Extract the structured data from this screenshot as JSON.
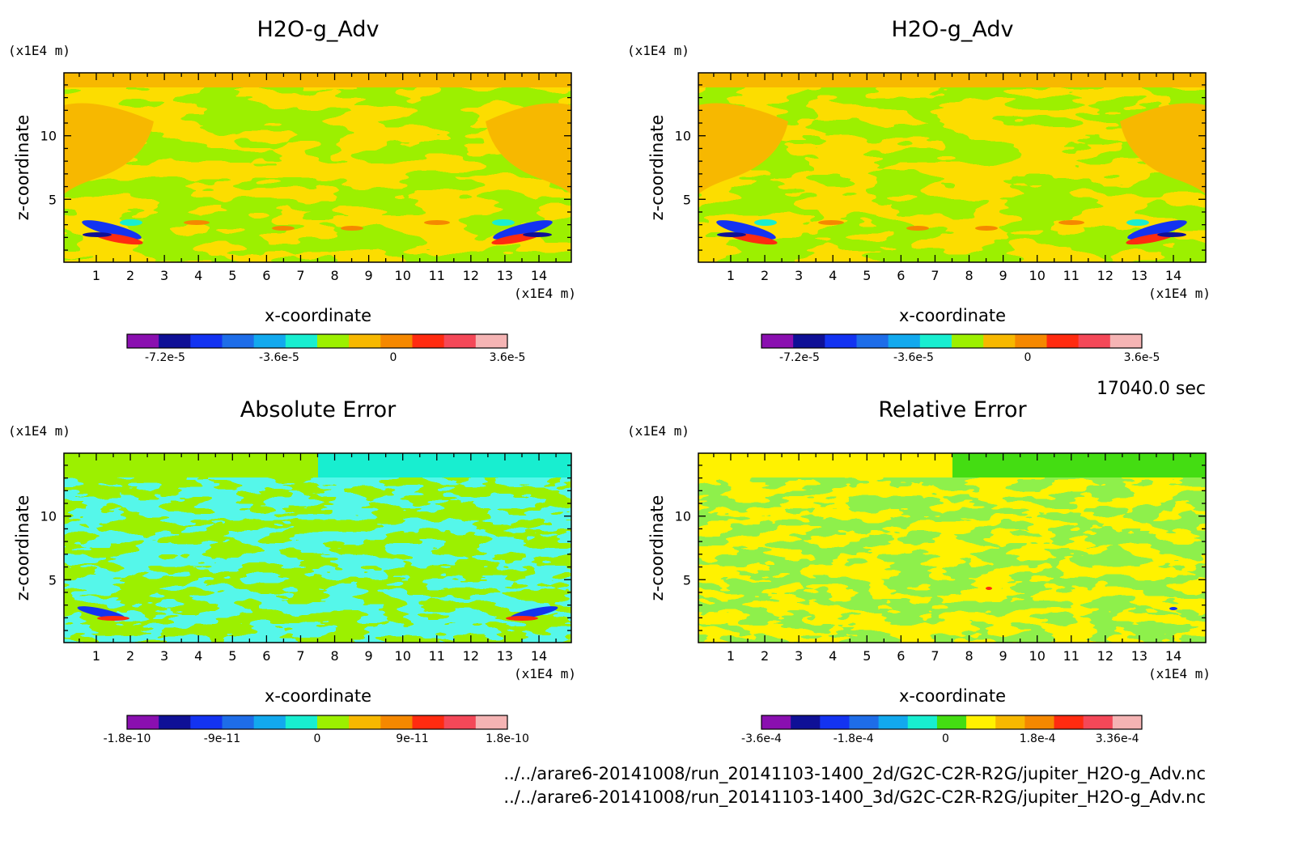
{
  "time_label": "17040.0 sec",
  "file_paths": [
    "../../arare6-20141008/run_20141103-1400_2d/G2C-C2R-R2G/jupiter_H2O-g_Adv.nc",
    "../../arare6-20141008/run_20141103-1400_3d/G2C-C2R-R2G/jupiter_H2O-g_Adv.nc"
  ],
  "colors": {
    "palette_12": [
      "#8a0fb0",
      "#0f1096",
      "#1333f1",
      "#1e6de8",
      "#12a9ee",
      "#18eed0",
      "#9cf000",
      "#f7b800",
      "#f58800",
      "#ff2b10",
      "#f44858",
      "#f5b4b4"
    ],
    "palette_rel": [
      "#8a0fb0",
      "#0f1096",
      "#1333f1",
      "#1e6de8",
      "#12a9ee",
      "#18eed0",
      "#44dd12",
      "#fff200",
      "#f7b800",
      "#f58800",
      "#ff2b10",
      "#f44858",
      "#f5b4b4"
    ]
  },
  "chart_data": [
    {
      "type": "heatmap",
      "title": "H2O-g_Adv",
      "xlabel": "x-coordinate",
      "ylabel": "z-coordinate",
      "x_unit": "(x1E4 m)",
      "y_unit": "(x1E4 m)",
      "x_ticks": [
        "1",
        "2",
        "3",
        "4",
        "5",
        "6",
        "7",
        "8",
        "9",
        "10",
        "11",
        "12",
        "13",
        "14"
      ],
      "y_ticks": [
        "5",
        "10"
      ],
      "xlim": [
        0.05,
        14.95
      ],
      "ylim": [
        0.05,
        14.95
      ],
      "colorbar_labels": [
        "-7.2e-5",
        "-3.6e-5",
        "0",
        "3.6e-5"
      ],
      "colorbar_label_positions": [
        -7.2e-05,
        -3.6e-05,
        0,
        3.6e-05
      ],
      "colorbar_range": [
        -8.4e-05,
        3.6e-05
      ],
      "dominant_levels": [
        "0 to 1.2e-5 (orange)",
        "-1.2e-5 to 0 (green)"
      ]
    },
    {
      "type": "heatmap",
      "title": "H2O-g_Adv",
      "xlabel": "x-coordinate",
      "ylabel": "z-coordinate",
      "x_unit": "(x1E4 m)",
      "y_unit": "(x1E4 m)",
      "x_ticks": [
        "1",
        "2",
        "3",
        "4",
        "5",
        "6",
        "7",
        "8",
        "9",
        "10",
        "11",
        "12",
        "13",
        "14"
      ],
      "y_ticks": [
        "5",
        "10"
      ],
      "xlim": [
        0.05,
        14.95
      ],
      "ylim": [
        0.05,
        14.95
      ],
      "colorbar_labels": [
        "-7.2e-5",
        "-3.6e-5",
        "0",
        "3.6e-5"
      ],
      "colorbar_label_positions": [
        -7.2e-05,
        -3.6e-05,
        0,
        3.6e-05
      ],
      "colorbar_range": [
        -8.4e-05,
        3.6e-05
      ],
      "dominant_levels": [
        "0 to 1.2e-5 (orange)",
        "-1.2e-5 to 0 (green)"
      ]
    },
    {
      "type": "heatmap",
      "title": "Absolute Error",
      "xlabel": "x-coordinate",
      "ylabel": "z-coordinate",
      "x_unit": "(x1E4 m)",
      "y_unit": "(x1E4 m)",
      "x_ticks": [
        "1",
        "2",
        "3",
        "4",
        "5",
        "6",
        "7",
        "8",
        "9",
        "10",
        "11",
        "12",
        "13",
        "14"
      ],
      "y_ticks": [
        "5",
        "10"
      ],
      "xlim": [
        0.05,
        14.95
      ],
      "ylim": [
        0.05,
        14.95
      ],
      "colorbar_labels": [
        "-1.8e-10",
        "-9e-11",
        "0",
        "9e-11",
        "1.8e-10"
      ],
      "colorbar_label_positions": [
        -1.8e-10,
        -9e-11,
        0,
        9e-11,
        1.8e-10
      ],
      "colorbar_range": [
        -1.8e-10,
        1.8e-10
      ],
      "dominant_levels": [
        "-3e-11 to 0 (cyan)",
        "0 to 3e-11 (green)"
      ]
    },
    {
      "type": "heatmap",
      "title": "Relative Error",
      "xlabel": "x-coordinate",
      "ylabel": "z-coordinate",
      "x_unit": "(x1E4 m)",
      "y_unit": "(x1E4 m)",
      "x_ticks": [
        "1",
        "2",
        "3",
        "4",
        "5",
        "6",
        "7",
        "8",
        "9",
        "10",
        "11",
        "12",
        "13",
        "14"
      ],
      "y_ticks": [
        "5",
        "10"
      ],
      "xlim": [
        0.05,
        14.95
      ],
      "ylim": [
        0.05,
        14.95
      ],
      "colorbar_labels": [
        "-3.6e-4",
        "-1.8e-4",
        "0",
        "1.8e-4",
        "3.36e-4"
      ],
      "colorbar_label_positions": [
        -0.00036,
        -0.00018,
        0,
        0.00018,
        0.000336
      ],
      "colorbar_range": [
        -0.00036,
        0.000384
      ],
      "dominant_levels": [
        "-3e-5 to 0 (green)",
        "0 to 3e-5 (yellow)"
      ]
    }
  ]
}
